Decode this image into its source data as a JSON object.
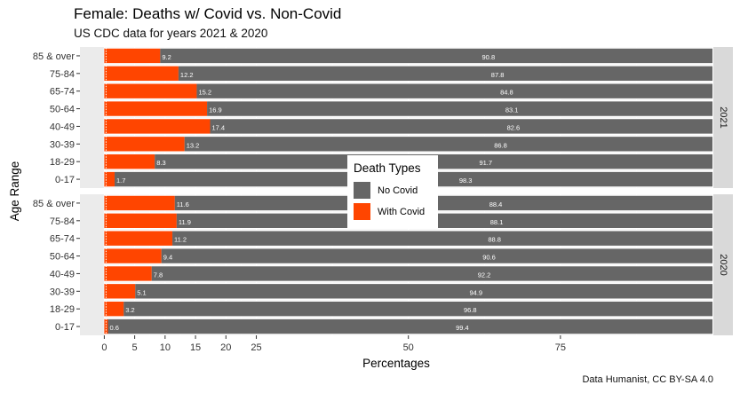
{
  "title": "Female: Deaths w/ Covid vs. Non-Covid",
  "subtitle": "US CDC data for years 2021 & 2020",
  "caption": "Data Humanist, CC BY-SA 4.0",
  "colors": {
    "no_covid": "#666666",
    "with_covid": "#ff4500",
    "panel_bg": "#ebebeb",
    "strip_bg": "#d9d9d9",
    "grid": "#ffffff"
  },
  "legend": {
    "title": "Death Types",
    "items": [
      {
        "label": "No Covid",
        "color": "#666666"
      },
      {
        "label": "With Covid",
        "color": "#ff4500"
      }
    ]
  },
  "chart_data": {
    "type": "bar",
    "orientation": "horizontal",
    "stacked": true,
    "xlabel": "Percentages",
    "ylabel": "Age Range",
    "xlim": [
      -4,
      100
    ],
    "x_ticks": [
      "0",
      "5",
      "10",
      "15",
      "20",
      "25",
      "50",
      "75"
    ],
    "x_tick_values": [
      0,
      5,
      10,
      15,
      20,
      25,
      50,
      75
    ],
    "categories": [
      "85 & over",
      "75-84",
      "65-74",
      "50-64",
      "40-49",
      "30-39",
      "18-29",
      "0-17"
    ],
    "facets": [
      {
        "label": "2021",
        "series": [
          {
            "name": "With Covid",
            "values": [
              9.2,
              12.2,
              15.2,
              16.9,
              17.4,
              13.2,
              8.3,
              1.7
            ],
            "labels": [
              "9.2",
              "12.2",
              "15.2",
              "16.9",
              "17.4",
              "13.2",
              "8.3",
              "1.7"
            ]
          },
          {
            "name": "No Covid",
            "values": [
              90.8,
              87.8,
              84.8,
              83.1,
              82.6,
              86.8,
              91.7,
              98.3
            ],
            "labels": [
              "90.8",
              "87.8",
              "84.8",
              "83.1",
              "82.6",
              "86.8",
              "91.7",
              "98.3"
            ]
          }
        ]
      },
      {
        "label": "2020",
        "series": [
          {
            "name": "With Covid",
            "values": [
              11.6,
              11.9,
              11.2,
              9.4,
              7.8,
              5.1,
              3.2,
              0.6
            ],
            "labels": [
              "11.6",
              "11.9",
              "11.2",
              "9.4",
              "7.8",
              "5.1",
              "3.2",
              "0.6"
            ]
          },
          {
            "name": "No Covid",
            "values": [
              88.4,
              88.1,
              88.8,
              90.6,
              92.2,
              94.9,
              96.8,
              99.4
            ],
            "labels": [
              "88.4",
              "88.1",
              "88.8",
              "90.6",
              "92.2",
              "94.9",
              "96.8",
              "99.4"
            ]
          }
        ]
      }
    ],
    "legend_position": "center"
  }
}
